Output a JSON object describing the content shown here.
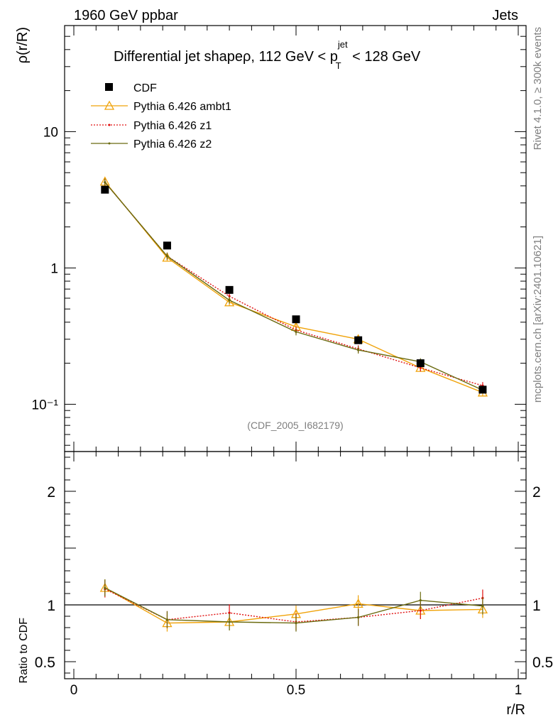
{
  "header": {
    "left": "1960 GeV ppbar",
    "right": "Jets"
  },
  "side_labels": {
    "rivet": "Rivet 4.1.0, ≥ 300k events",
    "mcplots": "mcplots.cern.ch [arXiv:2401.10621]"
  },
  "title": {
    "prefix": "Differential jet shapeρ, 112 GeV < p",
    "sup": "jet",
    "sub": "T",
    "suffix": " < 128 GeV"
  },
  "watermark": "(CDF_2005_I682179)",
  "colors": {
    "cdf": "#000000",
    "ambt1": "#f0a30a",
    "z1": "#e01010",
    "z2": "#6b6b10"
  },
  "chart_data": [
    {
      "type": "line",
      "panel": "main",
      "yscale": "log",
      "ylabel": "ρ(r/R)",
      "xlabel": "r/R",
      "xlim": [
        0,
        1
      ],
      "ylim": [
        0.045,
        60
      ],
      "ytick_labels": [
        "10",
        "1",
        "10⁻¹"
      ],
      "ytick_values": [
        10,
        1,
        0.1
      ],
      "x": [
        0.07,
        0.21,
        0.35,
        0.5,
        0.64,
        0.78,
        0.92
      ],
      "legend": [
        "CDF",
        "Pythia 6.426 ambt1",
        "Pythia 6.426 z1",
        "Pythia 6.426 z2"
      ],
      "series": [
        {
          "name": "CDF",
          "key": "cdf",
          "style": "square",
          "values": [
            3.75,
            1.46,
            0.69,
            0.42,
            0.295,
            0.2,
            0.128
          ]
        },
        {
          "name": "Pythia 6.426 ambt1",
          "key": "ambt1",
          "style": "triangle",
          "values": [
            4.3,
            1.19,
            0.56,
            0.37,
            0.3,
            0.185,
            0.122
          ]
        },
        {
          "name": "Pythia 6.426 z1",
          "key": "z1",
          "style": "dotted",
          "values": [
            4.25,
            1.22,
            0.62,
            0.35,
            0.255,
            0.185,
            0.137
          ]
        },
        {
          "name": "Pythia 6.426 z2",
          "key": "z2",
          "style": "solid-dot",
          "values": [
            4.25,
            1.22,
            0.58,
            0.34,
            0.25,
            0.205,
            0.127
          ]
        }
      ]
    },
    {
      "type": "line",
      "panel": "ratio",
      "yscale": "linear",
      "ylabel": "Ratio to CDF",
      "xlabel": "r/R",
      "xlim": [
        0,
        1
      ],
      "ylim": [
        0.35,
        2.35
      ],
      "ytick_labels": [
        "2",
        "1",
        "0.5"
      ],
      "ytick_values": [
        2,
        1,
        0.5
      ],
      "xtick_labels": [
        "0",
        "0.5",
        "1"
      ],
      "xtick_values": [
        0,
        0.5,
        1
      ],
      "reference": 1.0,
      "x": [
        0.07,
        0.21,
        0.35,
        0.5,
        0.64,
        0.78,
        0.92
      ],
      "series": [
        {
          "name": "Pythia 6.426 ambt1",
          "key": "ambt1",
          "style": "triangle",
          "values": [
            1.15,
            0.84,
            0.85,
            0.92,
            1.01,
            0.95,
            0.96
          ]
        },
        {
          "name": "Pythia 6.426 z1",
          "key": "z1",
          "style": "dotted",
          "values": [
            1.14,
            0.87,
            0.93,
            0.85,
            0.89,
            0.95,
            1.06
          ]
        },
        {
          "name": "Pythia 6.426 z2",
          "key": "z2",
          "style": "solid-dot",
          "values": [
            1.15,
            0.87,
            0.85,
            0.84,
            0.89,
            1.04,
            0.99
          ]
        }
      ]
    }
  ]
}
